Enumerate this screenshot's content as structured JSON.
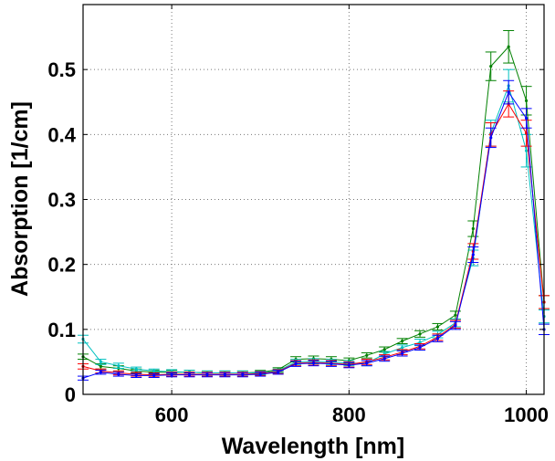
{
  "chart_data": {
    "type": "line",
    "title": "",
    "xlabel": "Wavelength [nm]",
    "ylabel": "Absorption [1/cm]",
    "xlim": [
      500,
      1020
    ],
    "ylim": [
      0,
      0.6
    ],
    "xticks": [
      600,
      800,
      1000
    ],
    "yticks": [
      0,
      0.1,
      0.2,
      0.3,
      0.4,
      0.5
    ],
    "grid": true,
    "error_bars": true,
    "x": [
      500,
      520,
      540,
      560,
      580,
      600,
      620,
      640,
      660,
      680,
      700,
      720,
      740,
      760,
      780,
      800,
      820,
      840,
      860,
      880,
      900,
      920,
      940,
      960,
      980,
      1000,
      1020
    ],
    "series": [
      {
        "color": "#008000",
        "values": [
          0.058,
          0.043,
          0.04,
          0.036,
          0.034,
          0.034,
          0.034,
          0.033,
          0.033,
          0.033,
          0.034,
          0.038,
          0.054,
          0.055,
          0.054,
          0.052,
          0.06,
          0.069,
          0.082,
          0.093,
          0.104,
          0.122,
          0.255,
          0.505,
          0.535,
          0.452,
          0.142
        ],
        "errors": [
          0.004,
          0.004,
          0.004,
          0.003,
          0.003,
          0.003,
          0.003,
          0.003,
          0.003,
          0.003,
          0.003,
          0.003,
          0.004,
          0.004,
          0.004,
          0.004,
          0.004,
          0.004,
          0.004,
          0.005,
          0.005,
          0.006,
          0.012,
          0.022,
          0.025,
          0.022,
          0.01
        ]
      },
      {
        "color": "#00c0c0",
        "values": [
          0.085,
          0.05,
          0.044,
          0.039,
          0.036,
          0.035,
          0.034,
          0.033,
          0.033,
          0.033,
          0.033,
          0.036,
          0.05,
          0.051,
          0.05,
          0.048,
          0.048,
          0.062,
          0.072,
          0.08,
          0.092,
          0.11,
          0.21,
          0.402,
          0.475,
          0.375,
          0.12
        ],
        "errors": [
          0.006,
          0.004,
          0.004,
          0.003,
          0.003,
          0.003,
          0.003,
          0.003,
          0.003,
          0.003,
          0.003,
          0.003,
          0.004,
          0.004,
          0.004,
          0.004,
          0.004,
          0.004,
          0.004,
          0.005,
          0.005,
          0.006,
          0.012,
          0.02,
          0.025,
          0.025,
          0.01
        ]
      },
      {
        "color": "#ff0000",
        "values": [
          0.043,
          0.036,
          0.033,
          0.031,
          0.03,
          0.031,
          0.031,
          0.031,
          0.031,
          0.031,
          0.032,
          0.035,
          0.048,
          0.049,
          0.048,
          0.046,
          0.05,
          0.057,
          0.065,
          0.074,
          0.088,
          0.108,
          0.22,
          0.4,
          0.447,
          0.402,
          0.142
        ],
        "errors": [
          0.004,
          0.003,
          0.003,
          0.003,
          0.003,
          0.003,
          0.003,
          0.003,
          0.003,
          0.003,
          0.003,
          0.003,
          0.004,
          0.004,
          0.004,
          0.004,
          0.004,
          0.004,
          0.004,
          0.004,
          0.005,
          0.006,
          0.012,
          0.018,
          0.02,
          0.02,
          0.01
        ]
      },
      {
        "color": "#0000ff",
        "values": [
          0.025,
          0.034,
          0.031,
          0.029,
          0.029,
          0.03,
          0.03,
          0.03,
          0.03,
          0.03,
          0.031,
          0.034,
          0.047,
          0.048,
          0.047,
          0.045,
          0.048,
          0.055,
          0.063,
          0.072,
          0.086,
          0.106,
          0.215,
          0.395,
          0.465,
          0.425,
          0.1
        ],
        "errors": [
          0.003,
          0.003,
          0.003,
          0.003,
          0.003,
          0.003,
          0.003,
          0.003,
          0.003,
          0.003,
          0.003,
          0.003,
          0.004,
          0.004,
          0.004,
          0.004,
          0.004,
          0.004,
          0.004,
          0.004,
          0.005,
          0.006,
          0.012,
          0.015,
          0.018,
          0.015,
          0.008
        ]
      }
    ]
  }
}
